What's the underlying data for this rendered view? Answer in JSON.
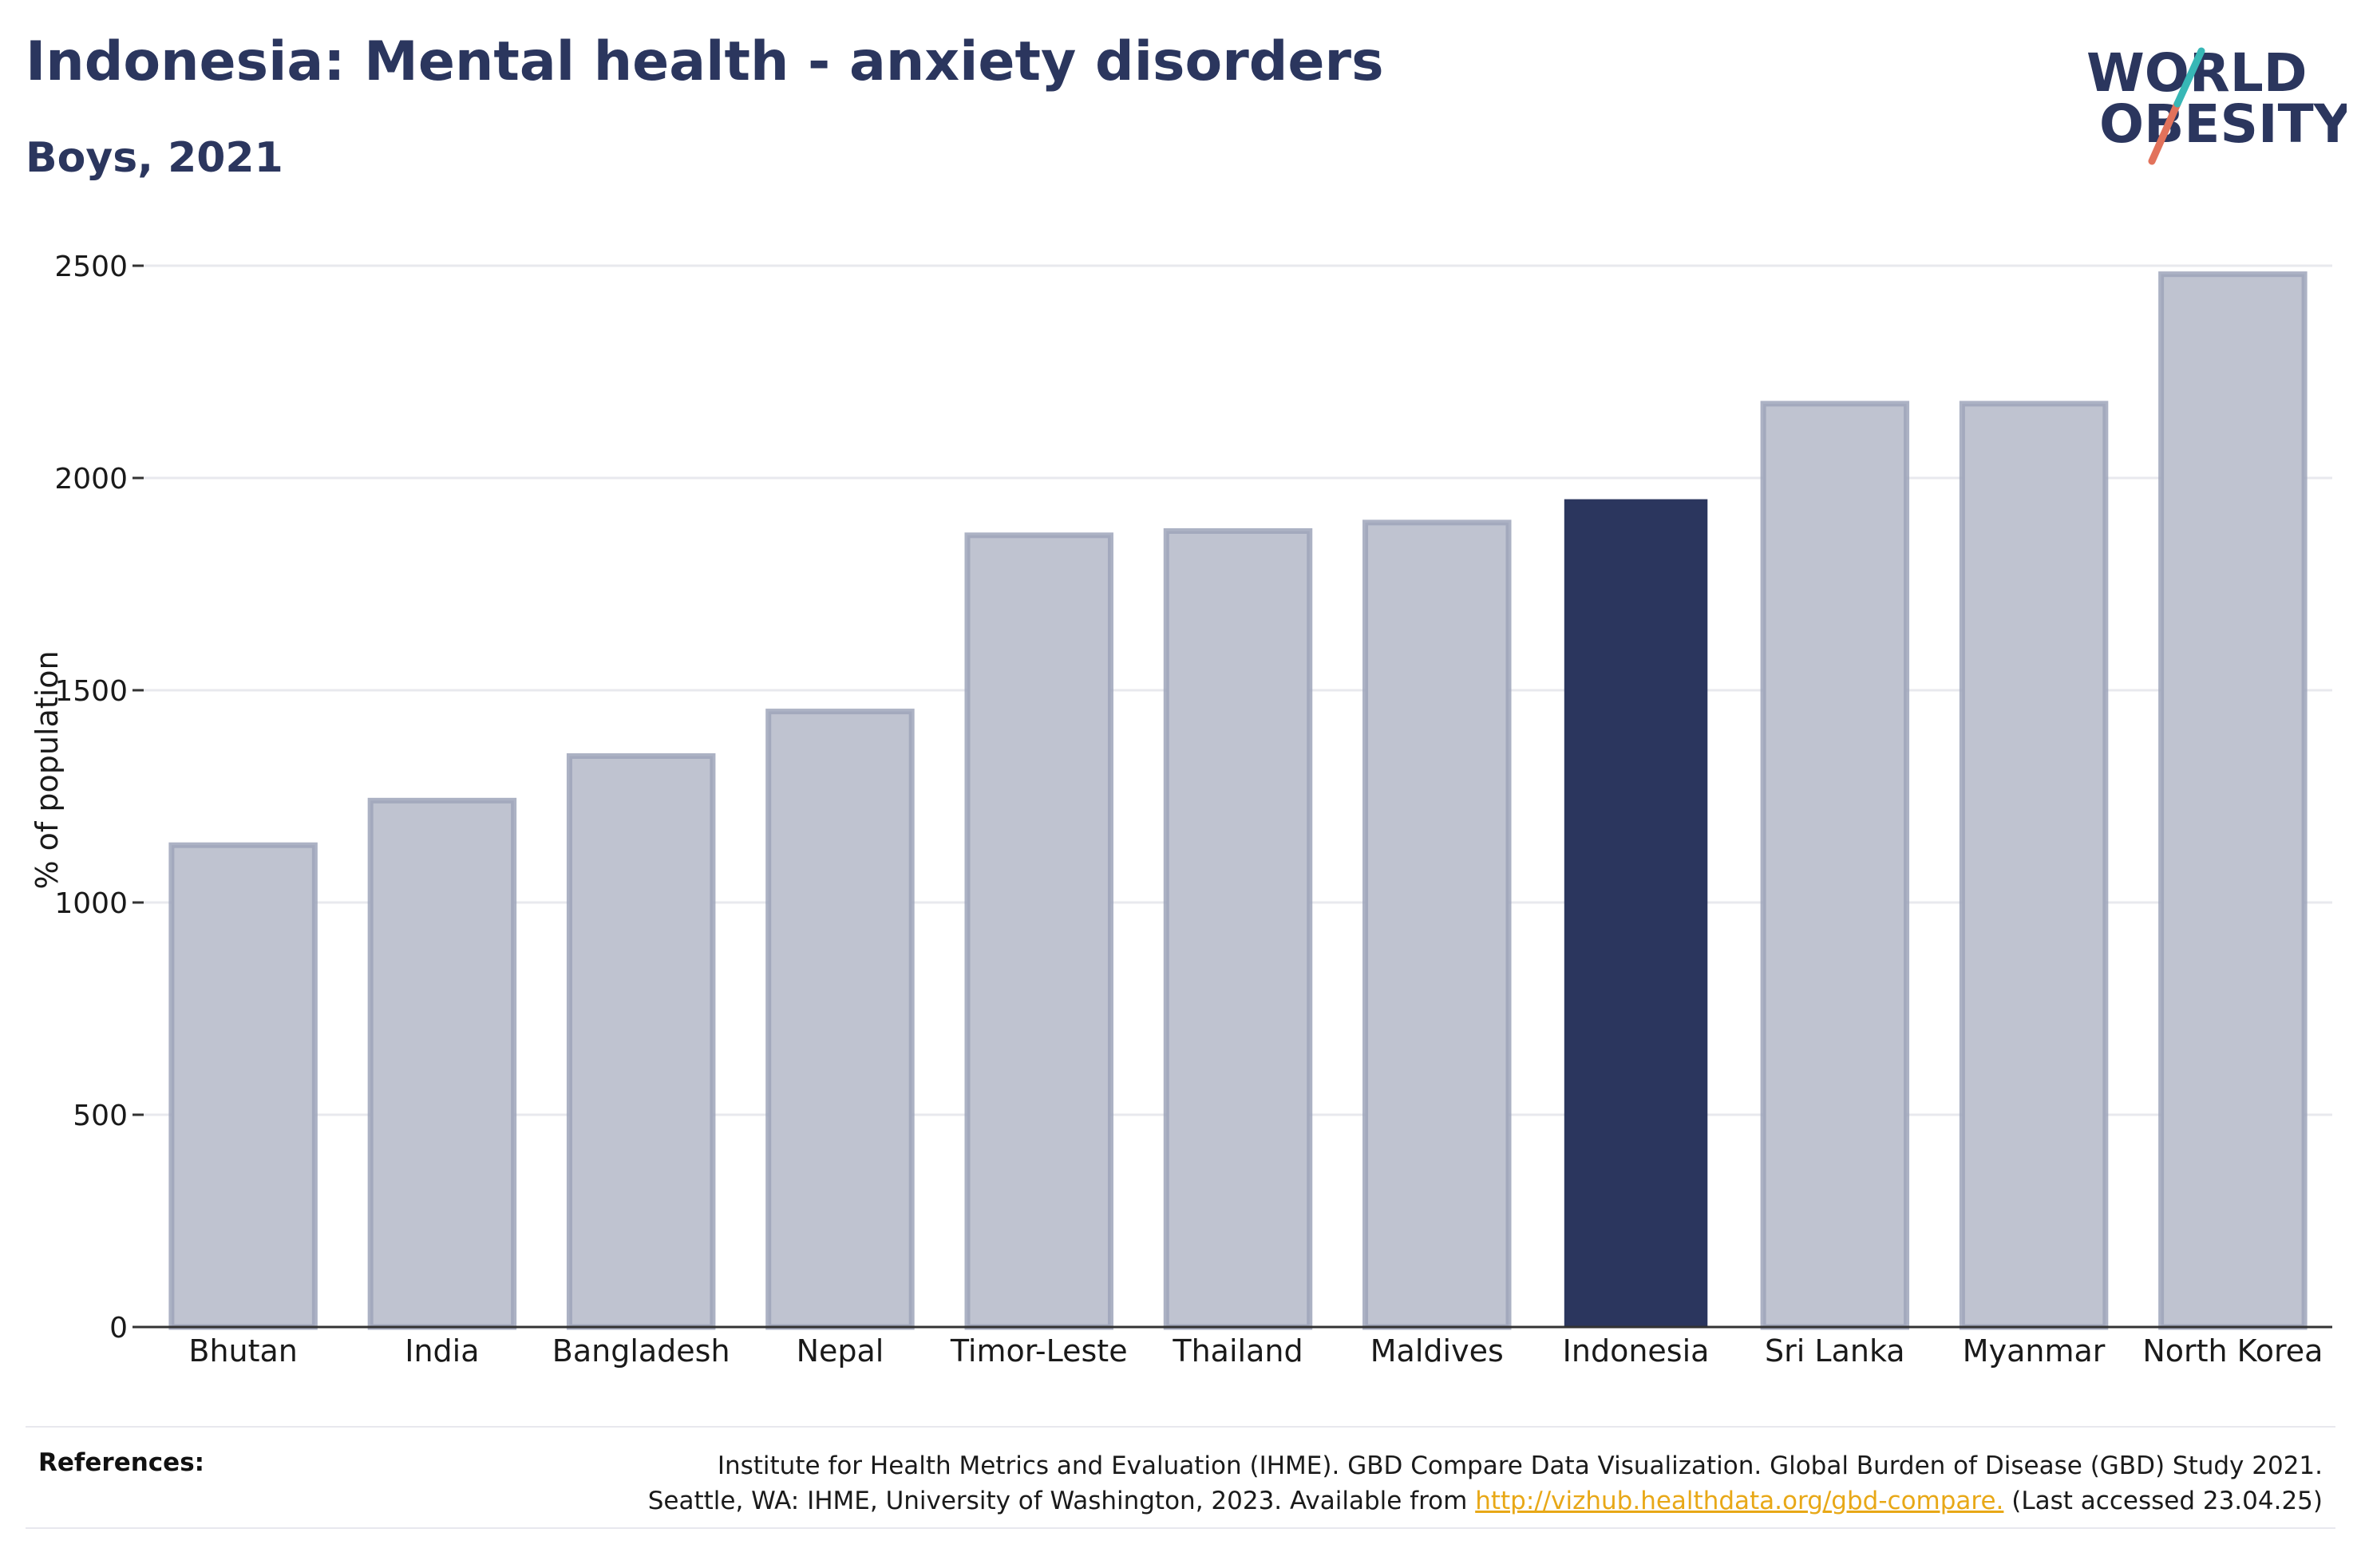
{
  "title": "Indonesia: Mental health - anxiety disorders",
  "subtitle": "Boys, 2021",
  "logo": {
    "line1": "WORLD",
    "line2": "OBESITY"
  },
  "colors": {
    "highlight": "#2b365e",
    "bar": "#bfc3d0",
    "bar_edge": "#9ea4ba",
    "text": "#2b365e",
    "link": "#e8a817"
  },
  "chart_data": {
    "type": "bar",
    "categories": [
      "Bhutan",
      "India",
      "Bangladesh",
      "Nepal",
      "Timor-Leste",
      "Thailand",
      "Maldives",
      "Indonesia",
      "Sri Lanka",
      "Myanmar",
      "North Korea"
    ],
    "values": [
      1135,
      1240,
      1345,
      1450,
      1865,
      1875,
      1895,
      1950,
      2175,
      2175,
      2480
    ],
    "highlight": "Indonesia",
    "ylabel": "% of population",
    "ylim": [
      0,
      2500
    ],
    "yticks": [
      0,
      500,
      1000,
      1500,
      2000,
      2500
    ],
    "grid": true
  },
  "references": {
    "label": "References:",
    "line1": "Institute for Health Metrics and Evaluation (IHME). GBD Compare Data Visualization. Global Burden of Disease (GBD) Study 2021.",
    "line2_prefix": "Seattle, WA: IHME, University of Washington, 2023. Available from ",
    "link": "http://vizhub.healthdata.org/gbd-compare.",
    "line2_suffix": " (Last accessed 23.04.25)"
  }
}
